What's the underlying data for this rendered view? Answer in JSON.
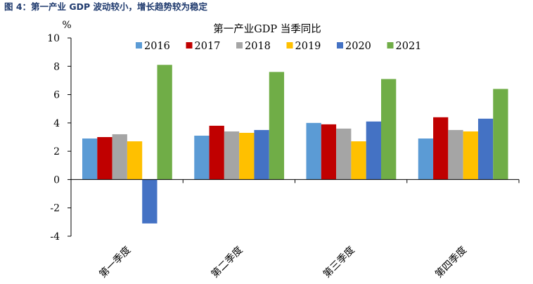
{
  "figure_caption": "图 4：第一产业 GDP 波动较小，增长趋势较为稳定",
  "chart_data": {
    "type": "bar",
    "title": "第一产业GDP 当季同比",
    "ylabel": "%",
    "xlabel": "",
    "ylim": [
      -4,
      10
    ],
    "yticks": [
      -4,
      -2,
      0,
      2,
      4,
      6,
      8,
      10
    ],
    "legend_position": "top",
    "grid": false,
    "categories": [
      "第一季度",
      "第二季度",
      "第三季度",
      "第四季度"
    ],
    "series": [
      {
        "name": "2016",
        "color": "#5b9bd5",
        "values": [
          2.9,
          3.1,
          4.0,
          2.9
        ]
      },
      {
        "name": "2017",
        "color": "#c00000",
        "values": [
          3.0,
          3.8,
          3.9,
          4.4
        ]
      },
      {
        "name": "2018",
        "color": "#a5a5a5",
        "values": [
          3.2,
          3.4,
          3.6,
          3.5
        ]
      },
      {
        "name": "2019",
        "color": "#ffc000",
        "values": [
          2.7,
          3.3,
          2.7,
          3.4
        ]
      },
      {
        "name": "2020",
        "color": "#4472c4",
        "values": [
          -3.1,
          3.5,
          4.1,
          4.3
        ]
      },
      {
        "name": "2021",
        "color": "#70ad47",
        "values": [
          8.1,
          7.6,
          7.1,
          6.4
        ]
      }
    ]
  }
}
